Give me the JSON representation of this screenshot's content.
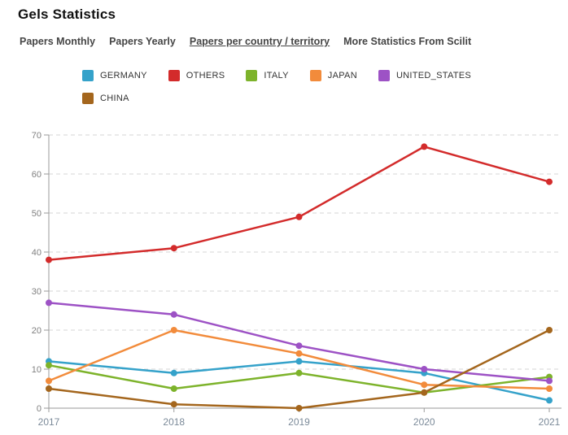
{
  "page": {
    "title": "Gels Statistics"
  },
  "tabs": [
    {
      "label": "Papers Monthly",
      "selected": false
    },
    {
      "label": "Papers Yearly",
      "selected": false
    },
    {
      "label": "Papers per country / territory",
      "selected": true
    },
    {
      "label": "More Statistics From Scilit",
      "selected": false
    }
  ],
  "chart_data": {
    "type": "line",
    "title": "Papers per country / territory",
    "categories": [
      "2017",
      "2018",
      "2019",
      "2020",
      "2021"
    ],
    "series": [
      {
        "name": "GERMANY",
        "color": "#35A2CA",
        "values": [
          12,
          9,
          12,
          9,
          2
        ]
      },
      {
        "name": "OTHERS",
        "color": "#D32B2B",
        "values": [
          38,
          41,
          49,
          67,
          58
        ]
      },
      {
        "name": "ITALY",
        "color": "#7DB32B",
        "values": [
          11,
          5,
          9,
          4,
          8
        ]
      },
      {
        "name": "JAPAN",
        "color": "#F28B3B",
        "values": [
          7,
          20,
          14,
          6,
          5
        ]
      },
      {
        "name": "UNITED_STATES",
        "color": "#9D52C5",
        "values": [
          27,
          24,
          16,
          10,
          7
        ]
      },
      {
        "name": "CHINA",
        "color": "#A4661D",
        "values": [
          5,
          1,
          0,
          4,
          20
        ]
      }
    ],
    "xlabel": "",
    "ylabel": "",
    "ylim": [
      0,
      70
    ],
    "yticks": [
      0,
      10,
      20,
      30,
      40,
      50,
      60,
      70
    ],
    "grid": true,
    "gridline_style": "dashed",
    "legend_position": "top",
    "axis_color": "#9a9a9a",
    "gridline_color": "#d4d4d4"
  }
}
